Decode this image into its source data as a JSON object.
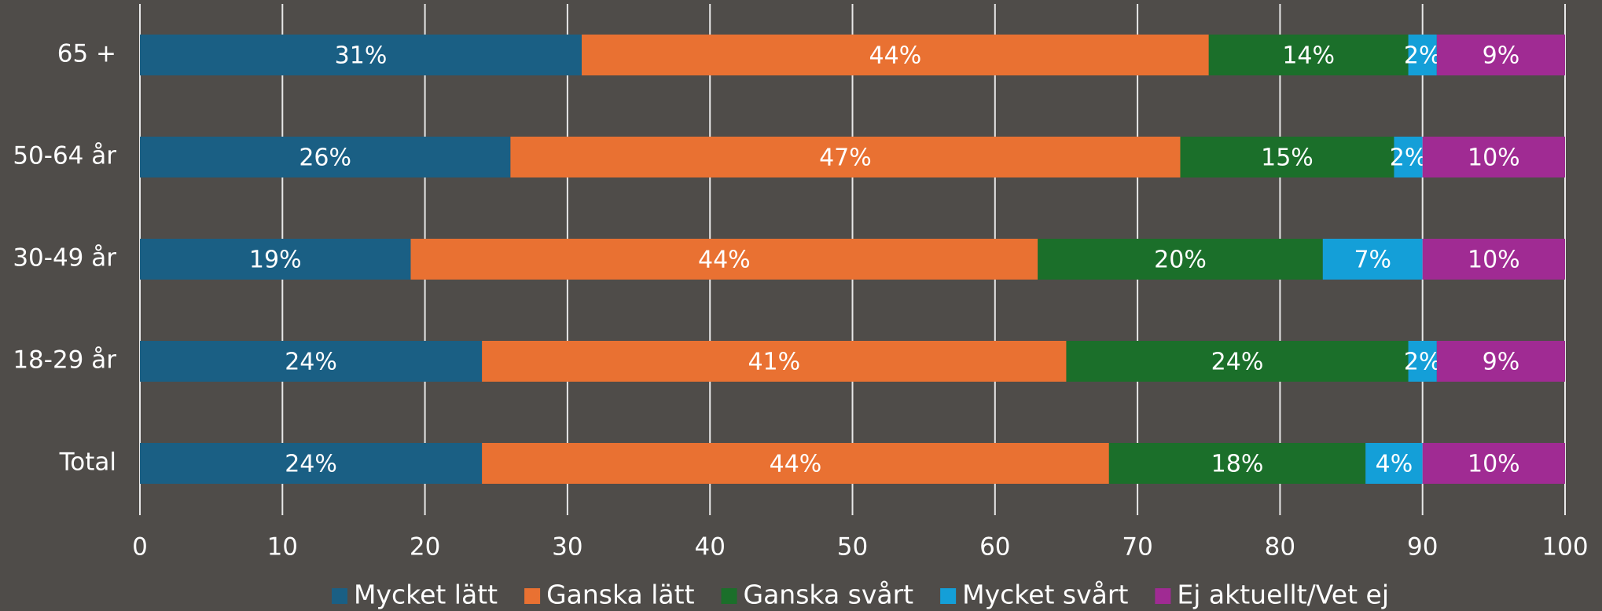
{
  "chart_data": {
    "type": "stacked_barh",
    "categories": [
      "65 +",
      "50-64 år",
      "30-49 år",
      "18-29 år",
      "Total"
    ],
    "series": [
      {
        "name": "Mycket lätt",
        "color": "#1a5f84",
        "values": [
          31,
          26,
          19,
          24,
          24
        ],
        "value_labels": [
          "31%",
          "26%",
          "19%",
          "24%",
          "24%"
        ]
      },
      {
        "name": "Ganska lätt",
        "color": "#e97132",
        "values": [
          44,
          47,
          44,
          41,
          44
        ],
        "value_labels": [
          "44%",
          "47%",
          "44%",
          "41%",
          "44%"
        ]
      },
      {
        "name": "Ganska svårt",
        "color": "#1b6f2a",
        "values": [
          14,
          15,
          20,
          24,
          18
        ],
        "value_labels": [
          "14%",
          "15%",
          "20%",
          "24%",
          "18%"
        ]
      },
      {
        "name": "Mycket svårt",
        "color": "#149fd8",
        "values": [
          2,
          2,
          7,
          2,
          4
        ],
        "value_labels": [
          "2%",
          "2%",
          "7%",
          "2%",
          "4%"
        ]
      },
      {
        "name": "Ej aktuellt/Vet ej",
        "color": "#a02b93",
        "values": [
          9,
          10,
          10,
          9,
          10
        ],
        "value_labels": [
          "9%",
          "10%",
          "10%",
          "9%",
          "10%"
        ]
      }
    ],
    "xlim": [
      0,
      100
    ],
    "xticks": [
      0,
      10,
      20,
      30,
      40,
      50,
      60,
      70,
      80,
      90,
      100
    ],
    "grid": true,
    "legend": "bottom"
  }
}
